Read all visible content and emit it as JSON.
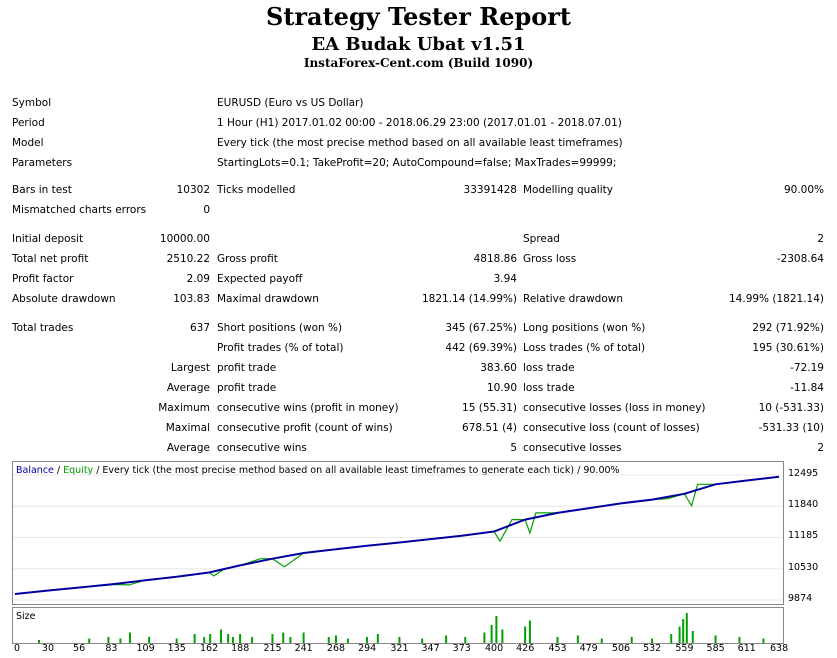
{
  "header": {
    "title": "Strategy Tester Report",
    "ea": "EA Budak Ubat v1.51",
    "broker": "InstaForex-Cent.com (Build 1090)"
  },
  "info": [
    {
      "label": "Symbol",
      "value": "EURUSD (Euro vs US Dollar)"
    },
    {
      "label": "Period",
      "value": "1 Hour (H1) 2017.01.02 00:00 - 2018.06.29 23:00 (2017.01.01 - 2018.07.01)"
    },
    {
      "label": "Model",
      "value": "Every tick (the most precise method based on all available least timeframes)"
    },
    {
      "label": "Parameters",
      "value": "StartingLots=0.1; TakeProfit=20; AutoCompound=false; MaxTrades=99999;"
    }
  ],
  "stats": {
    "bars_label": "Bars in test",
    "bars": "10302",
    "ticks_label": "Ticks modelled",
    "ticks": "33391428",
    "quality_label": "Modelling quality",
    "quality": "90.00%",
    "mismatch_label": "Mismatched charts errors",
    "mismatch": "0",
    "deposit_label": "Initial deposit",
    "deposit": "10000.00",
    "spread_label": "Spread",
    "spread": "2",
    "netprofit_label": "Total net profit",
    "netprofit": "2510.22",
    "grossprofit_label": "Gross profit",
    "grossprofit": "4818.86",
    "grossloss_label": "Gross loss",
    "grossloss": "-2308.64",
    "pf_label": "Profit factor",
    "pf": "2.09",
    "expected_label": "Expected payoff",
    "expected": "3.94",
    "absdd_label": "Absolute drawdown",
    "absdd": "103.83",
    "maxdd_label": "Maximal drawdown",
    "maxdd": "1821.14 (14.99%)",
    "reldd_label": "Relative drawdown",
    "reldd": "14.99% (1821.14)",
    "trades_label": "Total trades",
    "trades": "637",
    "short_label": "Short positions (won %)",
    "short": "345 (67.25%)",
    "long_label": "Long positions (won %)",
    "long": "292 (71.92%)",
    "ptrades_label": "Profit trades (% of total)",
    "ptrades": "442 (69.39%)",
    "ltrades_label": "Loss trades (% of total)",
    "ltrades": "195 (30.61%)",
    "largest": "Largest",
    "average": "Average",
    "maximum": "Maximum",
    "maximal": "Maximal",
    "profit_trade": "profit trade",
    "loss_trade": "loss trade",
    "lpt": "383.60",
    "llt": "-72.19",
    "apt": "10.90",
    "alt": "-11.84",
    "mcw_label": "consecutive wins (profit in money)",
    "mcw": "15 (55.31)",
    "mcl_label": "consecutive losses (loss in money)",
    "mcl": "10 (-531.33)",
    "mcp_label": "consecutive profit (count of wins)",
    "mcp": "678.51 (4)",
    "mclc_label": "consecutive loss (count of losses)",
    "mclc": "-531.33 (10)",
    "acw_label": "consecutive wins",
    "acw": "5",
    "acl_label": "consecutive losses",
    "acl": "2"
  },
  "chart": {
    "legend_balance": "Balance",
    "legend_sep": " / ",
    "legend_equity": "Equity",
    "legend_rest": " / Every tick (the most precise method based on all available least timeframes to generate each tick) / 90.00%",
    "size_label": "Size",
    "balance_color": "#0000a0",
    "equity_color": "#00a000"
  },
  "chart_data": {
    "type": "line",
    "yticks": [
      9874,
      10530,
      11185,
      11840,
      12495
    ],
    "xticks": [
      0,
      30,
      56,
      83,
      109,
      135,
      162,
      188,
      215,
      241,
      268,
      294,
      321,
      347,
      373,
      400,
      426,
      453,
      479,
      506,
      532,
      559,
      585,
      611,
      638
    ],
    "ylim": [
      9874,
      12600
    ],
    "xlim": [
      0,
      638
    ],
    "balance": [
      [
        0,
        10000
      ],
      [
        30,
        10080
      ],
      [
        56,
        10140
      ],
      [
        83,
        10210
      ],
      [
        109,
        10290
      ],
      [
        135,
        10360
      ],
      [
        162,
        10450
      ],
      [
        188,
        10600
      ],
      [
        215,
        10740
      ],
      [
        241,
        10860
      ],
      [
        268,
        10940
      ],
      [
        294,
        11010
      ],
      [
        321,
        11080
      ],
      [
        347,
        11150
      ],
      [
        373,
        11220
      ],
      [
        400,
        11310
      ],
      [
        426,
        11560
      ],
      [
        453,
        11700
      ],
      [
        479,
        11800
      ],
      [
        506,
        11900
      ],
      [
        532,
        11980
      ],
      [
        559,
        12100
      ],
      [
        585,
        12300
      ],
      [
        611,
        12380
      ],
      [
        638,
        12460
      ]
    ],
    "equity": [
      [
        0,
        10000
      ],
      [
        30,
        10080
      ],
      [
        56,
        10140
      ],
      [
        83,
        10200
      ],
      [
        95,
        10190
      ],
      [
        109,
        10290
      ],
      [
        135,
        10360
      ],
      [
        162,
        10450
      ],
      [
        166,
        10380
      ],
      [
        175,
        10530
      ],
      [
        188,
        10600
      ],
      [
        205,
        10740
      ],
      [
        215,
        10740
      ],
      [
        225,
        10570
      ],
      [
        241,
        10860
      ],
      [
        268,
        10940
      ],
      [
        294,
        11010
      ],
      [
        321,
        11080
      ],
      [
        347,
        11150
      ],
      [
        373,
        11220
      ],
      [
        400,
        11310
      ],
      [
        405,
        11110
      ],
      [
        415,
        11560
      ],
      [
        426,
        11560
      ],
      [
        430,
        11280
      ],
      [
        435,
        11700
      ],
      [
        453,
        11700
      ],
      [
        479,
        11800
      ],
      [
        506,
        11900
      ],
      [
        532,
        11980
      ],
      [
        545,
        12000
      ],
      [
        559,
        12100
      ],
      [
        565,
        11850
      ],
      [
        570,
        12300
      ],
      [
        585,
        12300
      ],
      [
        611,
        12380
      ],
      [
        638,
        12460
      ]
    ],
    "size_bars": [
      [
        20,
        0.1
      ],
      [
        62,
        0.15
      ],
      [
        78,
        0.2
      ],
      [
        88,
        0.15
      ],
      [
        96,
        0.35
      ],
      [
        112,
        0.2
      ],
      [
        135,
        0.15
      ],
      [
        150,
        0.3
      ],
      [
        158,
        0.2
      ],
      [
        163,
        0.3
      ],
      [
        172,
        0.45
      ],
      [
        178,
        0.3
      ],
      [
        182,
        0.2
      ],
      [
        188,
        0.3
      ],
      [
        198,
        0.2
      ],
      [
        215,
        0.3
      ],
      [
        224,
        0.35
      ],
      [
        230,
        0.2
      ],
      [
        241,
        0.35
      ],
      [
        262,
        0.2
      ],
      [
        268,
        0.25
      ],
      [
        278,
        0.15
      ],
      [
        294,
        0.2
      ],
      [
        303,
        0.3
      ],
      [
        321,
        0.2
      ],
      [
        340,
        0.15
      ],
      [
        360,
        0.25
      ],
      [
        376,
        0.2
      ],
      [
        392,
        0.35
      ],
      [
        398,
        0.6
      ],
      [
        402,
        0.9
      ],
      [
        407,
        0.45
      ],
      [
        426,
        0.55
      ],
      [
        430,
        0.75
      ],
      [
        453,
        0.2
      ],
      [
        470,
        0.25
      ],
      [
        490,
        0.15
      ],
      [
        515,
        0.2
      ],
      [
        532,
        0.15
      ],
      [
        548,
        0.3
      ],
      [
        555,
        0.55
      ],
      [
        558,
        0.8
      ],
      [
        561,
        1.0
      ],
      [
        566,
        0.4
      ],
      [
        585,
        0.25
      ],
      [
        605,
        0.2
      ],
      [
        625,
        0.15
      ]
    ]
  }
}
